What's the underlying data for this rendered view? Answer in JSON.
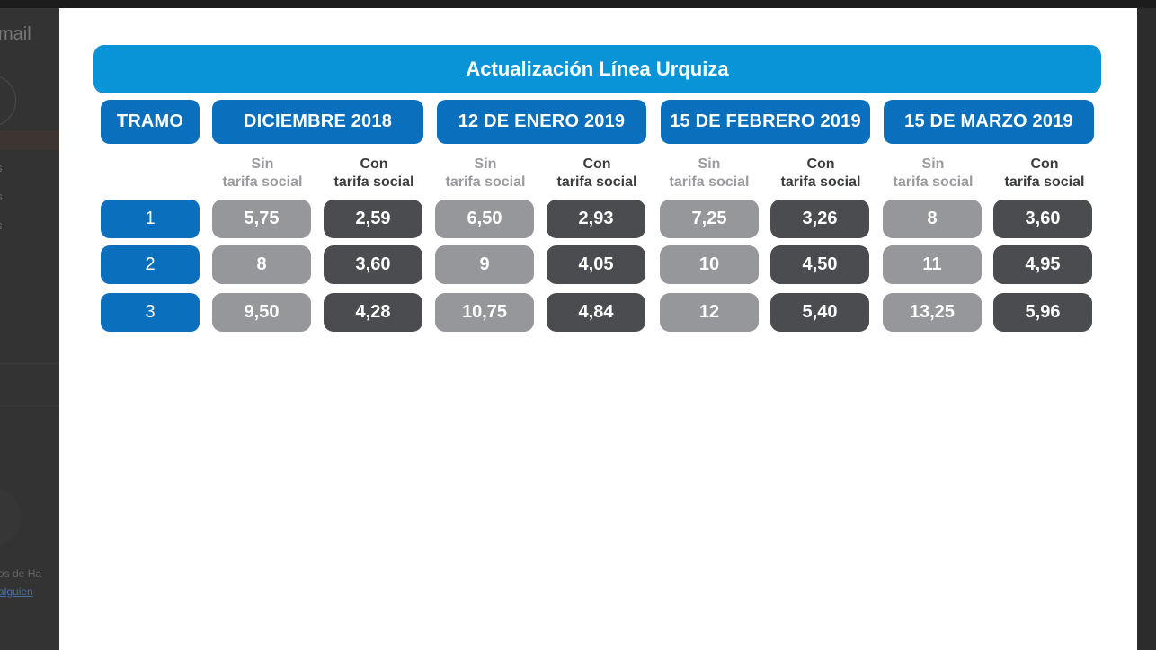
{
  "background": {
    "app_title": "mail",
    "sidebar_letters": [
      "s",
      "s",
      "s"
    ],
    "footer_text": "os de Ha",
    "footer_link": "alguien"
  },
  "table": {
    "title": "Actualización Línea Urquiza",
    "tramo_header": "TRAMO",
    "periods": [
      {
        "label": "DICIEMBRE 2018",
        "sin_label": [
          "Sin",
          "tarifa social"
        ],
        "con_label": [
          "Con",
          "tarifa social"
        ]
      },
      {
        "label": "12 DE ENERO 2019",
        "sin_label": [
          "Sin",
          "tarifa social"
        ],
        "con_label": [
          "Con",
          "tarifa social"
        ]
      },
      {
        "label": "15 DE FEBRERO 2019",
        "sin_label": [
          "Sin",
          "tarifa social"
        ],
        "con_label": [
          "Con",
          "tarifa social"
        ]
      },
      {
        "label": "15 DE MARZO 2019",
        "sin_label": [
          "Sin",
          "tarifa social"
        ],
        "con_label": [
          "Con",
          "tarifa social"
        ]
      }
    ],
    "rows": [
      {
        "tramo": "1",
        "values": [
          "5,75",
          "2,59",
          "6,50",
          "2,93",
          "7,25",
          "3,26",
          "8",
          "3,60"
        ]
      },
      {
        "tramo": "2",
        "values": [
          "8",
          "3,60",
          "9",
          "4,05",
          "10",
          "4,50",
          "11",
          "4,95"
        ]
      },
      {
        "tramo": "3",
        "values": [
          "9,50",
          "4,28",
          "10,75",
          "4,84",
          "12",
          "5,40",
          "13,25",
          "5,96"
        ]
      }
    ]
  },
  "colors": {
    "title_blue": "#0894d6",
    "header_blue": "#0a6fbc",
    "sin_gray": "#96979a",
    "con_dark": "#4b4c4f"
  }
}
